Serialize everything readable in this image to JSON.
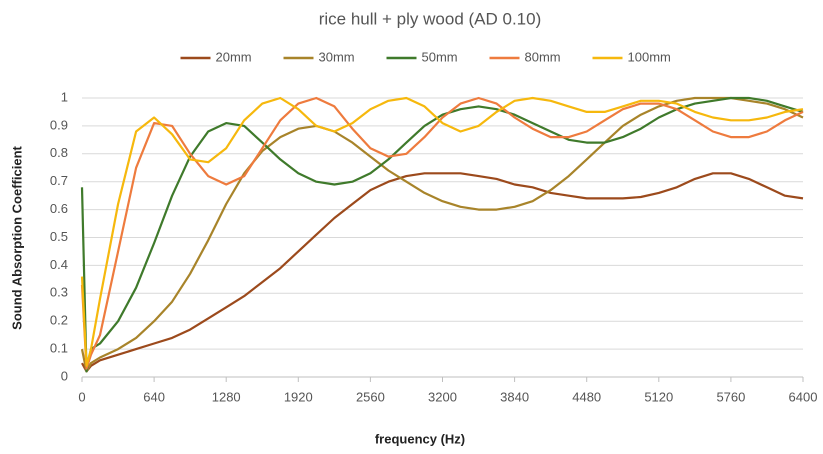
{
  "chart_data": {
    "type": "line",
    "title": "rice hull + ply wood (AD 0.10)",
    "x_label": "frequency (Hz)",
    "y_label": "Sound Absorption Coefficient",
    "x": [
      0,
      40,
      80,
      160,
      320,
      480,
      640,
      800,
      960,
      1120,
      1280,
      1440,
      1600,
      1760,
      1920,
      2080,
      2240,
      2400,
      2560,
      2720,
      2880,
      3040,
      3200,
      3360,
      3520,
      3680,
      3840,
      4000,
      4160,
      4320,
      4480,
      4640,
      4800,
      4960,
      5120,
      5280,
      5440,
      5600,
      5760,
      5920,
      6080,
      6240,
      6400
    ],
    "series": [
      {
        "name": "20mm",
        "color": "#9c4a1c",
        "values": [
          0.05,
          0.02,
          0.04,
          0.06,
          0.08,
          0.1,
          0.12,
          0.14,
          0.17,
          0.21,
          0.25,
          0.29,
          0.34,
          0.39,
          0.45,
          0.51,
          0.57,
          0.62,
          0.67,
          0.7,
          0.72,
          0.73,
          0.73,
          0.73,
          0.72,
          0.71,
          0.69,
          0.68,
          0.66,
          0.65,
          0.64,
          0.64,
          0.64,
          0.645,
          0.66,
          0.68,
          0.71,
          0.73,
          0.73,
          0.71,
          0.68,
          0.65,
          0.64
        ]
      },
      {
        "name": "30mm",
        "color": "#a8842a",
        "values": [
          0.1,
          0.02,
          0.05,
          0.07,
          0.1,
          0.14,
          0.2,
          0.27,
          0.37,
          0.49,
          0.62,
          0.73,
          0.81,
          0.86,
          0.89,
          0.9,
          0.88,
          0.84,
          0.79,
          0.74,
          0.7,
          0.66,
          0.63,
          0.61,
          0.6,
          0.6,
          0.61,
          0.63,
          0.67,
          0.72,
          0.78,
          0.84,
          0.9,
          0.94,
          0.97,
          0.99,
          1.0,
          1.0,
          1.0,
          0.99,
          0.98,
          0.96,
          0.93
        ]
      },
      {
        "name": "50mm",
        "color": "#3f7a2b",
        "values": [
          0.68,
          0.02,
          0.1,
          0.12,
          0.2,
          0.32,
          0.48,
          0.65,
          0.79,
          0.88,
          0.91,
          0.9,
          0.84,
          0.78,
          0.73,
          0.7,
          0.69,
          0.7,
          0.73,
          0.78,
          0.84,
          0.9,
          0.94,
          0.96,
          0.97,
          0.96,
          0.94,
          0.91,
          0.88,
          0.85,
          0.84,
          0.84,
          0.86,
          0.89,
          0.93,
          0.96,
          0.98,
          0.99,
          1.0,
          1.0,
          0.99,
          0.97,
          0.95
        ]
      },
      {
        "name": "80mm",
        "color": "#ee7b3e",
        "values": [
          0.33,
          0.03,
          0.08,
          0.15,
          0.45,
          0.75,
          0.91,
          0.9,
          0.8,
          0.72,
          0.69,
          0.72,
          0.82,
          0.92,
          0.98,
          1.0,
          0.97,
          0.89,
          0.82,
          0.79,
          0.8,
          0.86,
          0.93,
          0.98,
          1.0,
          0.98,
          0.93,
          0.89,
          0.86,
          0.86,
          0.88,
          0.92,
          0.96,
          0.98,
          0.98,
          0.96,
          0.92,
          0.88,
          0.86,
          0.86,
          0.88,
          0.92,
          0.95
        ]
      },
      {
        "name": "100mm",
        "color": "#f6b80d",
        "values": [
          0.36,
          0.04,
          0.1,
          0.28,
          0.62,
          0.88,
          0.93,
          0.87,
          0.78,
          0.77,
          0.82,
          0.92,
          0.98,
          1.0,
          0.96,
          0.9,
          0.88,
          0.91,
          0.96,
          0.99,
          1.0,
          0.97,
          0.91,
          0.88,
          0.9,
          0.95,
          0.99,
          1.0,
          0.99,
          0.97,
          0.95,
          0.95,
          0.97,
          0.99,
          0.99,
          0.98,
          0.95,
          0.93,
          0.92,
          0.92,
          0.93,
          0.95,
          0.96
        ]
      }
    ],
    "xlim": [
      0,
      6400
    ],
    "xticks": [
      0,
      640,
      1280,
      1920,
      2560,
      3200,
      3840,
      4480,
      5120,
      5760,
      6400
    ],
    "ylim": [
      0,
      1
    ],
    "yticks": [
      0,
      0.1,
      0.2,
      0.3,
      0.4,
      0.5,
      0.6,
      0.7,
      0.8,
      0.9,
      1
    ],
    "grid": true,
    "legend": "top"
  }
}
